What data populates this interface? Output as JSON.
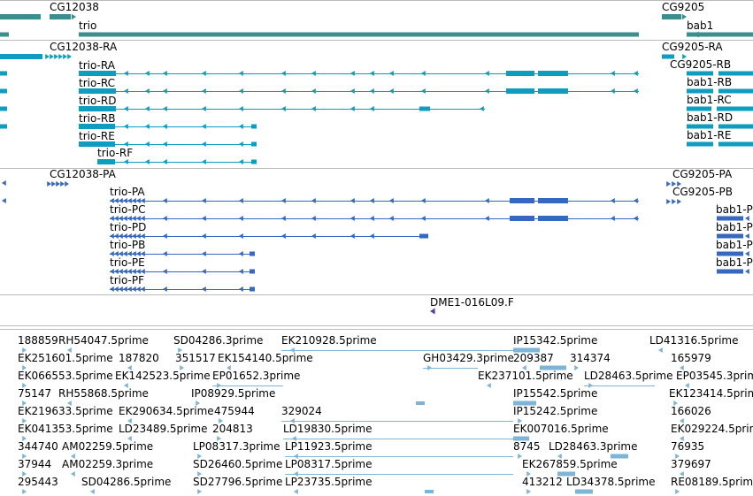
{
  "colors": {
    "teal": "#3A8E8E",
    "cyan": "#0E9DBE",
    "blue": "#3668C2",
    "lightblue": "#7EB4D6",
    "purple": "#5A3EA8",
    "divider": "#BBBBBB",
    "label": "#000000"
  },
  "tracks": {
    "genes": [
      {
        "name": "CG12038",
        "strand": "+"
      },
      {
        "name": "CG9205",
        "strand": "+"
      },
      {
        "name": "trio",
        "strand": "+"
      },
      {
        "name": "bab1",
        "strand": "+"
      }
    ],
    "transcripts_rna": [
      "CG12038-RA",
      "CG9205-RA",
      "CG9205-RB",
      "trio-RA",
      "trio-RC",
      "trio-RD",
      "trio-RB",
      "trio-RE",
      "trio-RF",
      "bab1-RB",
      "bab1-RC",
      "bab1-RD",
      "bab1-RE"
    ],
    "transcripts_protein": [
      "CG12038-PA",
      "CG9205-PA",
      "CG9205-PB",
      "trio-PA",
      "trio-PC",
      "trio-PD",
      "trio-PB",
      "trio-PE",
      "trio-PF",
      "bab1-P",
      "bab1-P",
      "bab1-P",
      "bab1-P"
    ],
    "clone": [
      "DME1-016L09.F"
    ],
    "ests": [
      "188859",
      "RH54047.5prime",
      "SD04286.3prime",
      "EK210928.5prime",
      "IP15342.5prime",
      "LD41316.5prime",
      "EK251601.5prime",
      "187820",
      "351517",
      "EK154140.5prime",
      "GH03429.3prime",
      "209387",
      "314374",
      "165979",
      "EK066553.5prime",
      "EK142523.5prime",
      "EP01652.3prime",
      "EK237101.5prime",
      "LD28463.5prime",
      "EP03545.3prime",
      "75147",
      "RH55868.5prime",
      "IP08929.5prime",
      "IP15542.5prime",
      "EK123414.5prime",
      "EK219633.5prime",
      "EK290634.5prime",
      "475944",
      "329024",
      "IP15242.5prime",
      "166026",
      "EK041353.5prime",
      "LD23489.5prime",
      "204813",
      "LD19830.5prime",
      "EK007016.5prime",
      "EK029224.5prime",
      "344740",
      "AM02259.5prime",
      "LP08317.3prime",
      "LP11923.5prime",
      "8745",
      "LD28463.3prime",
      "76935",
      "37944",
      "AM02259.3prime",
      "SD26460.5prime",
      "LP08317.5prime",
      "EK267859.5prime",
      "379697",
      "295443",
      "SD04286.5prime",
      "SD27796.5prime",
      "LP23735.5prime",
      "413212",
      "LD34378.5prime",
      "RE08189.5prime"
    ]
  }
}
